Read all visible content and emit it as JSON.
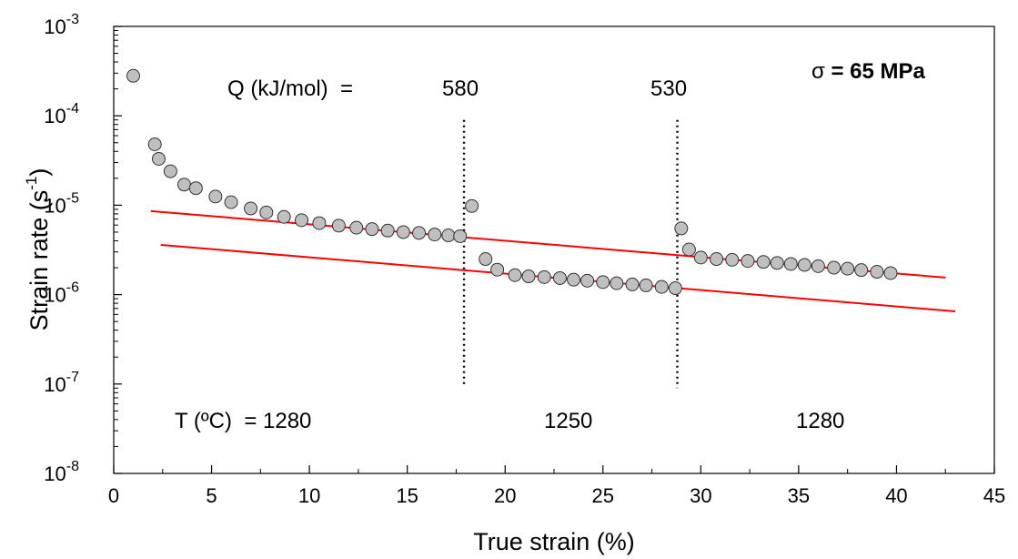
{
  "chart_data": {
    "type": "scatter",
    "title": "",
    "xlabel": "True strain (%)",
    "ylabel": "Strain rate (s",
    "ylabel_superscript": "-1",
    "ylabel_suffix": ")",
    "xlim": [
      0,
      45
    ],
    "ylim": [
      1e-08,
      0.001
    ],
    "yscale": "log",
    "grid": false,
    "x_ticks": [
      0,
      5,
      10,
      15,
      20,
      25,
      30,
      35,
      40,
      45
    ],
    "y_ticks": [
      {
        "value": 1e-08,
        "base": "10",
        "exp": "-8"
      },
      {
        "value": 1e-07,
        "base": "10",
        "exp": "-7"
      },
      {
        "value": 1e-06,
        "base": "10",
        "exp": "-6"
      },
      {
        "value": 1e-05,
        "base": "10",
        "exp": "-5"
      },
      {
        "value": 0.0001,
        "base": "10",
        "exp": "-4"
      },
      {
        "value": 0.001,
        "base": "10",
        "exp": "-3"
      }
    ],
    "series": [
      {
        "marker_color": "#bfbfbf",
        "points": [
          [
            1.0,
            0.00028
          ],
          [
            2.1,
            4.8e-05
          ],
          [
            2.3,
            3.3e-05
          ],
          [
            2.9,
            2.4e-05
          ],
          [
            3.6,
            1.7e-05
          ],
          [
            4.2,
            1.55e-05
          ],
          [
            5.2,
            1.25e-05
          ],
          [
            6.0,
            1.08e-05
          ],
          [
            7.0,
            9.2e-06
          ],
          [
            7.8,
            8.3e-06
          ],
          [
            8.7,
            7.4e-06
          ],
          [
            9.6,
            6.8e-06
          ],
          [
            10.5,
            6.3e-06
          ],
          [
            11.5,
            5.9e-06
          ],
          [
            12.4,
            5.6e-06
          ],
          [
            13.2,
            5.4e-06
          ],
          [
            14.0,
            5.2e-06
          ],
          [
            14.8,
            5e-06
          ],
          [
            15.6,
            4.9e-06
          ],
          [
            16.4,
            4.7e-06
          ],
          [
            17.1,
            4.6e-06
          ],
          [
            17.7,
            4.5e-06
          ],
          [
            18.3,
            9.8e-06
          ],
          [
            19.0,
            2.5e-06
          ],
          [
            19.6,
            1.9e-06
          ],
          [
            20.5,
            1.65e-06
          ],
          [
            21.2,
            1.6e-06
          ],
          [
            22.0,
            1.57e-06
          ],
          [
            22.8,
            1.53e-06
          ],
          [
            23.5,
            1.47e-06
          ],
          [
            24.2,
            1.43e-06
          ],
          [
            25.0,
            1.38e-06
          ],
          [
            25.7,
            1.34e-06
          ],
          [
            26.5,
            1.3e-06
          ],
          [
            27.2,
            1.27e-06
          ],
          [
            28.0,
            1.22e-06
          ],
          [
            28.7,
            1.18e-06
          ],
          [
            29.0,
            5.5e-06
          ],
          [
            29.4,
            3.2e-06
          ],
          [
            30.0,
            2.6e-06
          ],
          [
            30.8,
            2.5e-06
          ],
          [
            31.6,
            2.45e-06
          ],
          [
            32.4,
            2.38e-06
          ],
          [
            33.2,
            2.32e-06
          ],
          [
            33.9,
            2.26e-06
          ],
          [
            34.6,
            2.2e-06
          ],
          [
            35.3,
            2.15e-06
          ],
          [
            36.0,
            2.08e-06
          ],
          [
            36.8,
            2e-06
          ],
          [
            37.5,
            1.95e-06
          ],
          [
            38.2,
            1.88e-06
          ],
          [
            39.0,
            1.8e-06
          ],
          [
            39.7,
            1.74e-06
          ]
        ]
      }
    ],
    "fit_lines": [
      {
        "color": "#ff0000",
        "x": [
          1.9,
          42.5
        ],
        "y": [
          8.6e-06,
          1.55e-06
        ]
      },
      {
        "color": "#ff0000",
        "x": [
          2.4,
          43.0
        ],
        "y": [
          3.6e-06,
          6.5e-07
        ]
      }
    ],
    "vertical_lines": [
      {
        "x": 17.9,
        "y_top": 9e-05,
        "y_bottom": 1e-07
      },
      {
        "x": 28.8,
        "y_top": 9e-05,
        "y_bottom": 9e-08
      }
    ],
    "annotations": {
      "q_label": "Q (kJ/mol)  =",
      "q_value_1": "580",
      "q_value_2": "530",
      "t_label": "T (ºC)  = 1280",
      "t_value_2": "1250",
      "t_value_3": "1280",
      "sigma_symbol": "σ",
      "sigma_value": " = 65 MPa"
    }
  }
}
